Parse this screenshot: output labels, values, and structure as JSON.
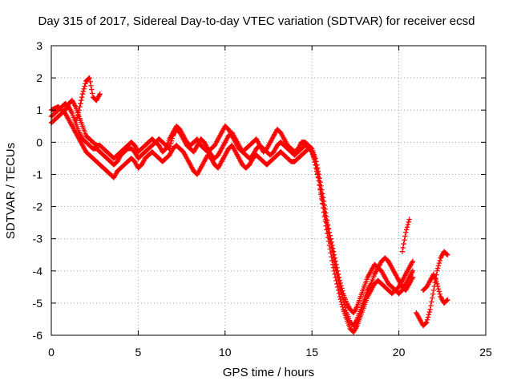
{
  "chart_data": {
    "type": "scatter",
    "title": "Day 315 of 2017, Sidereal Day-to-day VTEC variation (SDTVAR) for receiver ecsd",
    "xlabel": "GPS time / hours",
    "ylabel": "SDTVAR / TECUs",
    "xlim": [
      0,
      25
    ],
    "ylim": [
      -6,
      3
    ],
    "xticks": [
      0,
      5,
      10,
      15,
      20,
      25
    ],
    "yticks": [
      -6,
      -5,
      -4,
      -3,
      -2,
      -1,
      0,
      1,
      2,
      3
    ],
    "grid": true,
    "marker": "plus",
    "color": "#ff0000",
    "series": [
      {
        "x": [
          0.0,
          0.2,
          0.4,
          0.6,
          0.8,
          1.0,
          1.2,
          1.4,
          1.6,
          1.8,
          2.0,
          2.2,
          2.4,
          2.6,
          2.8,
          3.0,
          3.2,
          3.4,
          3.6,
          3.8,
          4.0,
          4.2,
          4.4,
          4.6,
          4.8,
          5.0,
          5.2,
          5.4,
          5.6,
          5.8,
          6.0,
          6.2,
          6.4,
          6.6,
          6.8,
          7.0,
          7.2,
          7.4,
          7.6,
          7.8,
          8.0,
          8.2,
          8.4,
          8.6,
          8.8,
          9.0,
          9.2,
          9.4,
          9.6,
          9.8,
          10.0,
          10.2,
          10.4,
          10.6,
          10.8,
          11.0,
          11.2,
          11.4,
          11.6,
          11.8,
          12.0,
          12.2,
          12.4,
          12.6,
          12.8,
          13.0,
          13.2,
          13.4,
          13.6,
          13.8,
          14.0,
          14.2,
          14.4,
          14.6,
          14.8,
          15.0,
          15.2,
          15.4,
          15.6,
          15.8,
          16.0,
          16.2,
          16.4,
          16.6,
          16.8,
          17.0,
          17.2,
          17.4,
          17.6,
          17.8,
          18.0,
          18.2,
          18.4,
          18.6,
          18.8,
          19.0,
          19.2,
          19.4,
          19.6,
          19.8,
          20.0,
          20.2,
          20.4,
          20.6,
          20.8
        ],
        "y": [
          0.8,
          0.9,
          1.0,
          1.1,
          1.2,
          1.1,
          0.9,
          0.6,
          0.3,
          0.1,
          0.0,
          -0.1,
          -0.2,
          -0.2,
          -0.3,
          -0.4,
          -0.5,
          -0.6,
          -0.7,
          -0.6,
          -0.4,
          -0.3,
          -0.2,
          -0.2,
          -0.3,
          -0.5,
          -0.4,
          -0.3,
          -0.2,
          -0.1,
          0.0,
          0.1,
          0.0,
          -0.1,
          -0.2,
          0.2,
          0.4,
          0.3,
          0.1,
          -0.1,
          -0.2,
          -0.3,
          -0.1,
          0.1,
          0.0,
          -0.2,
          -0.4,
          -0.5,
          -0.4,
          -0.2,
          0.0,
          0.2,
          0.3,
          0.1,
          -0.1,
          -0.3,
          -0.4,
          -0.5,
          -0.4,
          -0.2,
          -0.1,
          -0.2,
          -0.3,
          -0.4,
          -0.3,
          -0.1,
          0.0,
          -0.1,
          -0.2,
          -0.3,
          -0.4,
          -0.3,
          -0.2,
          -0.1,
          -0.1,
          -0.2,
          -0.5,
          -1.0,
          -1.6,
          -2.2,
          -2.8,
          -3.3,
          -3.8,
          -4.3,
          -4.7,
          -5.0,
          -5.2,
          -5.3,
          -5.1,
          -4.8,
          -4.5,
          -4.2,
          -4.0,
          -3.8,
          -3.9,
          -4.0,
          -4.2,
          -4.4,
          -4.5,
          -4.6,
          -4.7,
          -4.6,
          -4.4,
          -4.2,
          -4.0
        ]
      },
      {
        "x": [
          0.0,
          0.2,
          0.4,
          0.6,
          0.8,
          1.0,
          1.2,
          1.4,
          1.6,
          1.8,
          2.0,
          2.2,
          2.4,
          2.6,
          2.8,
          3.0,
          3.2,
          3.4,
          3.6,
          3.8,
          4.0,
          4.2,
          4.4,
          4.6,
          4.8,
          5.0,
          5.2,
          5.4,
          5.6,
          5.8,
          6.0,
          6.2,
          6.4,
          6.6,
          6.8,
          7.0,
          7.2,
          7.4,
          7.6,
          7.8,
          8.0,
          8.2,
          8.4,
          8.6,
          8.8,
          9.0,
          9.2,
          9.4,
          9.6,
          9.8,
          10.0,
          10.2,
          10.4,
          10.6,
          10.8,
          11.0,
          11.2,
          11.4,
          11.6,
          11.8,
          12.0,
          12.2,
          12.4,
          12.6,
          12.8,
          13.0,
          13.2,
          13.4,
          13.6,
          13.8,
          14.0,
          14.2,
          14.4,
          14.6,
          14.8,
          15.0,
          15.2,
          15.4,
          15.6,
          15.8,
          16.0,
          16.2,
          16.4,
          16.6,
          16.8,
          17.0,
          17.2,
          17.4,
          17.6,
          17.8,
          18.0,
          18.2,
          18.4,
          18.6,
          18.8,
          19.0,
          19.2,
          19.4,
          19.6,
          19.8,
          20.0,
          20.2,
          20.4,
          20.6,
          20.8
        ],
        "y": [
          0.6,
          0.7,
          0.8,
          0.9,
          1.0,
          1.2,
          1.3,
          1.1,
          0.8,
          0.5,
          0.2,
          0.1,
          0.0,
          -0.1,
          -0.1,
          -0.2,
          -0.3,
          -0.4,
          -0.5,
          -0.4,
          -0.3,
          -0.2,
          -0.1,
          0.0,
          -0.1,
          -0.3,
          -0.2,
          -0.1,
          0.0,
          0.1,
          0.0,
          -0.1,
          -0.3,
          -0.2,
          0.1,
          0.3,
          0.5,
          0.4,
          0.2,
          0.0,
          -0.1,
          0.0,
          0.1,
          -0.1,
          -0.2,
          -0.3,
          -0.2,
          -0.1,
          0.1,
          0.3,
          0.5,
          0.4,
          0.2,
          0.0,
          -0.2,
          -0.3,
          -0.2,
          -0.1,
          0.0,
          0.1,
          -0.1,
          -0.3,
          -0.2,
          0.0,
          0.2,
          0.4,
          0.3,
          0.1,
          -0.1,
          -0.2,
          -0.3,
          -0.2,
          0.0,
          0.0,
          -0.1,
          -0.3,
          -0.7,
          -1.2,
          -1.8,
          -2.4,
          -2.9,
          -3.5,
          -4.0,
          -4.5,
          -4.9,
          -5.3,
          -5.6,
          -5.7,
          -5.5,
          -5.2,
          -4.9,
          -4.6,
          -4.4,
          -4.1,
          -3.9,
          -3.7,
          -3.6,
          -3.7,
          -3.9,
          -4.1,
          -4.3,
          -4.5,
          -4.6,
          -4.4,
          -4.2
        ]
      },
      {
        "x": [
          0.0,
          0.2,
          0.4,
          0.6,
          0.8,
          1.0,
          1.2,
          1.4,
          1.6,
          1.8,
          2.0,
          2.2,
          2.4,
          2.6,
          2.8,
          3.0,
          3.2,
          3.4,
          3.6,
          3.8,
          4.0,
          4.2,
          4.4,
          4.6,
          4.8,
          5.0,
          5.2,
          5.4,
          5.6,
          5.8,
          6.0,
          6.2,
          6.4,
          6.6,
          6.8,
          7.0,
          7.2,
          7.4,
          7.6,
          7.8,
          8.0,
          8.2,
          8.4,
          8.6,
          8.8,
          9.0,
          9.2,
          9.4,
          9.6,
          9.8,
          10.0,
          10.2,
          10.4,
          10.6,
          10.8,
          11.0,
          11.2,
          11.4,
          11.6,
          11.8,
          12.0,
          12.2,
          12.4,
          12.6,
          12.8,
          13.0,
          13.2,
          13.4,
          13.6,
          13.8,
          14.0,
          14.2,
          14.4,
          14.6,
          14.8,
          15.0,
          15.2,
          15.4,
          15.6,
          15.8,
          16.0,
          16.2,
          16.4,
          16.6,
          16.8,
          17.0,
          17.2,
          17.4,
          17.6,
          17.8,
          18.0,
          18.2,
          18.4,
          18.6,
          18.8,
          19.0,
          19.2,
          19.4,
          19.6,
          19.8,
          20.0,
          20.2,
          20.4,
          20.6,
          20.8
        ],
        "y": [
          1.0,
          1.05,
          1.1,
          1.0,
          0.9,
          0.7,
          0.5,
          0.3,
          0.1,
          -0.1,
          -0.3,
          -0.4,
          -0.5,
          -0.6,
          -0.7,
          -0.8,
          -0.9,
          -1.0,
          -1.1,
          -0.9,
          -0.8,
          -0.7,
          -0.6,
          -0.5,
          -0.6,
          -0.8,
          -0.7,
          -0.5,
          -0.4,
          -0.3,
          -0.4,
          -0.5,
          -0.6,
          -0.5,
          -0.4,
          -0.2,
          -0.1,
          -0.2,
          -0.3,
          -0.5,
          -0.7,
          -0.9,
          -1.0,
          -0.8,
          -0.6,
          -0.4,
          -0.5,
          -0.7,
          -0.8,
          -0.6,
          -0.4,
          -0.2,
          -0.1,
          -0.3,
          -0.5,
          -0.7,
          -0.8,
          -0.7,
          -0.5,
          -0.4,
          -0.5,
          -0.6,
          -0.7,
          -0.6,
          -0.5,
          -0.4,
          -0.3,
          -0.4,
          -0.5,
          -0.6,
          -0.6,
          -0.5,
          -0.4,
          -0.3,
          -0.2,
          -0.3,
          -0.6,
          -1.2,
          -1.9,
          -2.6,
          -3.2,
          -3.8,
          -4.3,
          -4.8,
          -5.2,
          -5.5,
          -5.8,
          -5.9,
          -5.7,
          -5.4,
          -5.1,
          -4.8,
          -4.6,
          -4.4,
          -4.3,
          -4.4,
          -4.5,
          -4.6,
          -4.7,
          -4.6,
          -4.5,
          -4.3,
          -4.1,
          -3.9,
          -3.7
        ]
      },
      {
        "x": [
          1.4,
          1.6,
          1.8,
          2.0,
          2.2,
          2.4,
          2.6,
          2.8
        ],
        "y": [
          0.6,
          1.0,
          1.5,
          1.9,
          2.0,
          1.4,
          1.3,
          1.5
        ]
      },
      {
        "x": [
          20.2,
          20.4,
          20.6
        ],
        "y": [
          -3.4,
          -2.8,
          -2.4
        ]
      },
      {
        "x": [
          21.0,
          21.2,
          21.4,
          21.6,
          21.8,
          22.0,
          22.2,
          22.4,
          22.6,
          22.8
        ],
        "y": [
          -5.3,
          -5.5,
          -5.7,
          -5.6,
          -5.2,
          -4.6,
          -4.0,
          -3.6,
          -3.4,
          -3.5
        ]
      },
      {
        "x": [
          21.4,
          21.6,
          21.8,
          22.0,
          22.2,
          22.4,
          22.6,
          22.8
        ],
        "y": [
          -4.6,
          -4.5,
          -4.3,
          -4.1,
          -4.4,
          -4.8,
          -5.0,
          -4.9
        ]
      }
    ]
  }
}
